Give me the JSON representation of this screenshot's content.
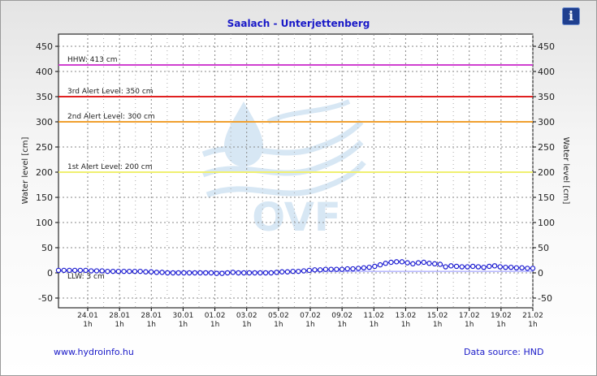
{
  "title": "Saalach - Unterjettenberg",
  "footer": {
    "left_link": "www.hydroinfo.hu",
    "right_text": "Data source: HND"
  },
  "info_icon": "info-icon",
  "chart_data": {
    "type": "line",
    "ylabel": "Water level [cm]",
    "ylim": [
      -60,
      470
    ],
    "yticks": [
      -50,
      0,
      50,
      100,
      150,
      200,
      250,
      300,
      350,
      400,
      450
    ],
    "xticks": [
      {
        "date": "24.01",
        "time": "1h"
      },
      {
        "date": "28.01",
        "time": "1h"
      },
      {
        "date": "28.01",
        "time": "1h"
      },
      {
        "date": "30.01",
        "time": "1h"
      },
      {
        "date": "01.02",
        "time": "1h"
      },
      {
        "date": "03.02",
        "time": "1h"
      },
      {
        "date": "05.02",
        "time": "1h"
      },
      {
        "date": "07.02",
        "time": "1h"
      },
      {
        "date": "09.02",
        "time": "1h"
      },
      {
        "date": "11.02",
        "time": "1h"
      },
      {
        "date": "13.02",
        "time": "1h"
      },
      {
        "date": "15.02",
        "time": "1h"
      },
      {
        "date": "17.02",
        "time": "1h"
      },
      {
        "date": "19.02",
        "time": "1h"
      },
      {
        "date": "21.02",
        "time": "1h"
      }
    ],
    "reference_lines": [
      {
        "label": "HHW: 413 cm",
        "value": 413,
        "color": "#d040d0"
      },
      {
        "label": "3rd Alert Level: 350 cm",
        "value": 350,
        "color": "#e02020"
      },
      {
        "label": "2nd Alert Level: 300 cm",
        "value": 300,
        "color": "#f0a030"
      },
      {
        "label": "1st Alert Level: 200 cm",
        "value": 200,
        "color": "#f0f070"
      },
      {
        "label": "LLW: 3 cm",
        "value": 3,
        "color": "#9090ff"
      }
    ],
    "series": [
      {
        "color": "#1a1ad0",
        "values": [
          5,
          5,
          5,
          5,
          5,
          5,
          4,
          4,
          4,
          3,
          3,
          3,
          3,
          3,
          3,
          3,
          2,
          2,
          1,
          1,
          0,
          0,
          0,
          0,
          0,
          0,
          0,
          0,
          0,
          -1,
          -1,
          0,
          1,
          0,
          0,
          0,
          0,
          0,
          0,
          0,
          1,
          2,
          2,
          3,
          3,
          4,
          5,
          6,
          6,
          7,
          7,
          7,
          7,
          8,
          8,
          9,
          10,
          11,
          13,
          16,
          19,
          21,
          22,
          22,
          20,
          18,
          20,
          21,
          19,
          18,
          17,
          12,
          14,
          13,
          12,
          12,
          13,
          12,
          11,
          13,
          14,
          12,
          11,
          11,
          10,
          10,
          9,
          9
        ]
      }
    ],
    "grid": true,
    "watermark": "OVF"
  }
}
